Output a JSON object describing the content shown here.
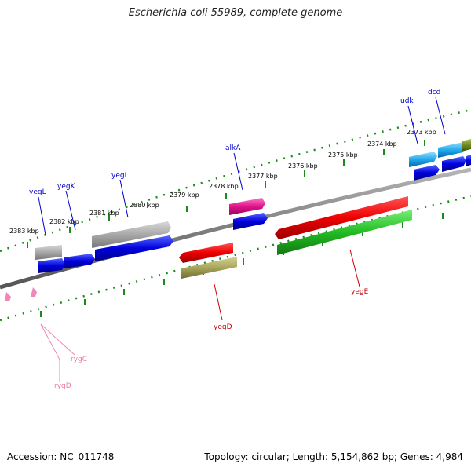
{
  "header": {
    "title": "Escherichia coli 55989, complete genome"
  },
  "footer": {
    "accession": "Accession: NC_011748",
    "summary": "Topology: circular; Length: 5,154,862 bp; Genes: 4,984"
  },
  "scale_labels": [
    "2383 kbp",
    "2382 kbp",
    "2381 kbp",
    "2380 kbp",
    "2379 kbp",
    "2378 kbp",
    "2377 kbp",
    "2376 kbp",
    "2375 kbp",
    "2374 kbp",
    "2373 kbp"
  ],
  "gene_labels": [
    {
      "name": "yegL",
      "color": "#0000cc"
    },
    {
      "name": "yegK",
      "color": "#0000cc"
    },
    {
      "name": "yegI",
      "color": "#0000cc"
    },
    {
      "name": "alkA",
      "color": "#0000cc"
    },
    {
      "name": "udk",
      "color": "#0000cc"
    },
    {
      "name": "dcd",
      "color": "#0000cc"
    },
    {
      "name": "yegD",
      "color": "#cc0000"
    },
    {
      "name": "yegE",
      "color": "#cc0000"
    },
    {
      "name": "rygC",
      "color": "#e87aa8"
    },
    {
      "name": "rygD",
      "color": "#e87aa8"
    }
  ],
  "colors": {
    "backbone": "#7f7f7f",
    "tick": "#1a8a1a",
    "cds_blue": "#0000dd",
    "gene_gray": "#a8a8a8",
    "cds_red": "#ee0000",
    "gene_green": "#22bb22",
    "gene_olive": "#a9a65a",
    "gene_magenta": "#e0148c",
    "gene_cyan": "#22aaee",
    "gene_olive_dark": "#6e8a1e",
    "rna_pink": "#ee88bb"
  }
}
